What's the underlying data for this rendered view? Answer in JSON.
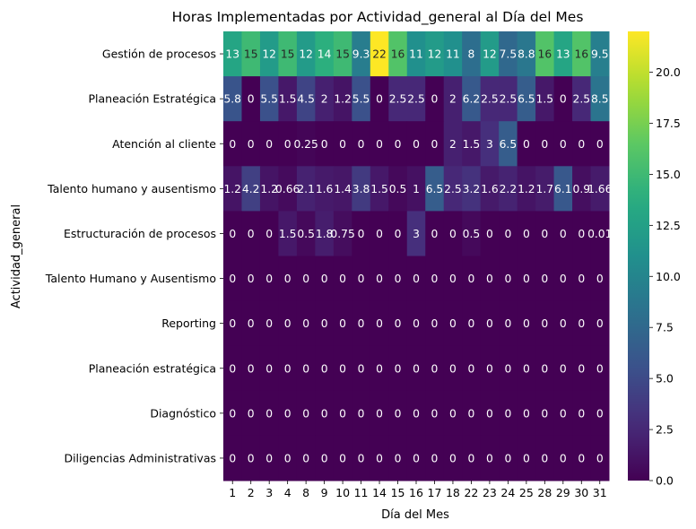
{
  "chart_data": {
    "type": "heatmap",
    "title": "Horas Implementadas por Actividad_general al Día del Mes",
    "xlabel": "Día del Mes",
    "ylabel": "Actividad_general",
    "x": [
      "1",
      "2",
      "3",
      "4",
      "8",
      "9",
      "10",
      "11",
      "14",
      "15",
      "16",
      "17",
      "18",
      "22",
      "23",
      "24",
      "25",
      "28",
      "29",
      "30",
      "31"
    ],
    "y": [
      "Gestión de procesos",
      "Planeación Estratégica",
      "Atención al cliente",
      "Talento humano y ausentismo",
      "Estructuración de procesos",
      "Talento Humano y Ausentismo",
      "Reporting",
      "Planeación estratégica",
      "Diagnóstico",
      "Diligencias Administrativas"
    ],
    "values": [
      [
        13,
        15,
        12,
        15,
        12,
        14,
        15,
        9.3,
        22,
        16,
        11,
        12,
        11,
        8,
        12,
        7.5,
        8.8,
        16,
        13,
        16,
        9.5
      ],
      [
        5.8,
        0,
        5.5,
        1.5,
        4.5,
        2,
        1.2,
        5.5,
        0,
        2.5,
        2.5,
        0,
        2,
        6.2,
        2.5,
        2.5,
        6.5,
        1.5,
        0,
        2.5,
        8.5
      ],
      [
        0,
        0,
        0,
        0,
        0.25,
        0,
        0,
        0,
        0,
        0,
        0,
        0,
        2,
        1.5,
        3,
        6.5,
        0,
        0,
        0,
        0,
        0
      ],
      [
        1.2,
        4.2,
        1.2,
        0.66,
        2.1,
        1.6,
        1.4,
        3.8,
        1.5,
        0.5,
        1,
        6.5,
        2.5,
        3.2,
        1.6,
        2.2,
        1.2,
        1.7,
        6.1,
        0.9,
        1.66
      ],
      [
        0,
        0,
        0,
        1.5,
        0.5,
        1.8,
        0.75,
        0,
        0,
        0,
        3,
        0,
        0,
        0.5,
        0,
        0,
        0,
        0,
        0,
        0,
        0.01
      ],
      [
        0,
        0,
        0,
        0,
        0,
        0,
        0,
        0,
        0,
        0,
        0,
        0,
        0,
        0,
        0,
        0,
        0,
        0,
        0,
        0,
        0
      ],
      [
        0,
        0,
        0,
        0,
        0,
        0,
        0,
        0,
        0,
        0,
        0,
        0,
        0,
        0,
        0,
        0,
        0,
        0,
        0,
        0,
        0
      ],
      [
        0,
        0,
        0,
        0,
        0,
        0,
        0,
        0,
        0,
        0,
        0,
        0,
        0,
        0,
        0,
        0,
        0,
        0,
        0,
        0,
        0
      ],
      [
        0,
        0,
        0,
        0,
        0,
        0,
        0,
        0,
        0,
        0,
        0,
        0,
        0,
        0,
        0,
        0,
        0,
        0,
        0,
        0,
        0
      ],
      [
        0,
        0,
        0,
        0,
        0,
        0,
        0,
        0,
        0,
        0,
        0,
        0,
        0,
        0,
        0,
        0,
        0,
        0,
        0,
        0,
        0
      ]
    ],
    "cell_labels": [
      [
        "13",
        "15",
        "12",
        "15",
        "12",
        "14",
        "15",
        "9.3",
        "22",
        "16",
        "11",
        "12",
        "11",
        "8",
        "12",
        "7.5",
        "8.8",
        "16",
        "13",
        "16",
        "9.5"
      ],
      [
        "5.8",
        "0",
        "5.5",
        "1.5",
        "4.5",
        "2",
        "1.2",
        "5.5",
        "0",
        "2.5",
        "2.5",
        "0",
        "2",
        "6.2",
        "2.5",
        "2.5",
        "6.5",
        "1.5",
        "0",
        "2.5",
        "8.5"
      ],
      [
        "0",
        "0",
        "0",
        "0",
        "0.25",
        "0",
        "0",
        "0",
        "0",
        "0",
        "0",
        "0",
        "2",
        "1.5",
        "3",
        "6.5",
        "0",
        "0",
        "0",
        "0",
        "0"
      ],
      [
        "1.2",
        "4.2",
        "1.2",
        "0.66",
        "2.1",
        "1.6",
        "1.4",
        "3.8",
        "1.5",
        "0.5",
        "1",
        "6.5",
        "2.5",
        "3.2",
        "1.6",
        "2.2",
        "1.2",
        "1.7",
        "6.1",
        "0.9",
        "1.66"
      ],
      [
        "0",
        "0",
        "0",
        "1.5",
        "0.5",
        "1.8",
        "0.75",
        "0",
        "0",
        "0",
        "3",
        "0",
        "0",
        "0.5",
        "0",
        "0",
        "0",
        "0",
        "0",
        "0",
        "0.01"
      ],
      [
        "0",
        "0",
        "0",
        "0",
        "0",
        "0",
        "0",
        "0",
        "0",
        "0",
        "0",
        "0",
        "0",
        "0",
        "0",
        "0",
        "0",
        "0",
        "0",
        "0",
        "0"
      ],
      [
        "0",
        "0",
        "0",
        "0",
        "0",
        "0",
        "0",
        "0",
        "0",
        "0",
        "0",
        "0",
        "0",
        "0",
        "0",
        "0",
        "0",
        "0",
        "0",
        "0",
        "0"
      ],
      [
        "0",
        "0",
        "0",
        "0",
        "0",
        "0",
        "0",
        "0",
        "0",
        "0",
        "0",
        "0",
        "0",
        "0",
        "0",
        "0",
        "0",
        "0",
        "0",
        "0",
        "0"
      ],
      [
        "0",
        "0",
        "0",
        "0",
        "0",
        "0",
        "0",
        "0",
        "0",
        "0",
        "0",
        "0",
        "0",
        "0",
        "0",
        "0",
        "0",
        "0",
        "0",
        "0",
        "0"
      ],
      [
        "0",
        "0",
        "0",
        "0",
        "0",
        "0",
        "0",
        "0",
        "0",
        "0",
        "0",
        "0",
        "0",
        "0",
        "0",
        "0",
        "0",
        "0",
        "0",
        "0",
        "0"
      ]
    ],
    "colormap": "viridis",
    "vmin": 0,
    "vmax": 22,
    "colorbar_ticks": [
      "0.0",
      "2.5",
      "5.0",
      "7.5",
      "10.0",
      "12.5",
      "15.0",
      "17.5",
      "20.0"
    ],
    "grid": false,
    "legend": "colorbar-right"
  }
}
